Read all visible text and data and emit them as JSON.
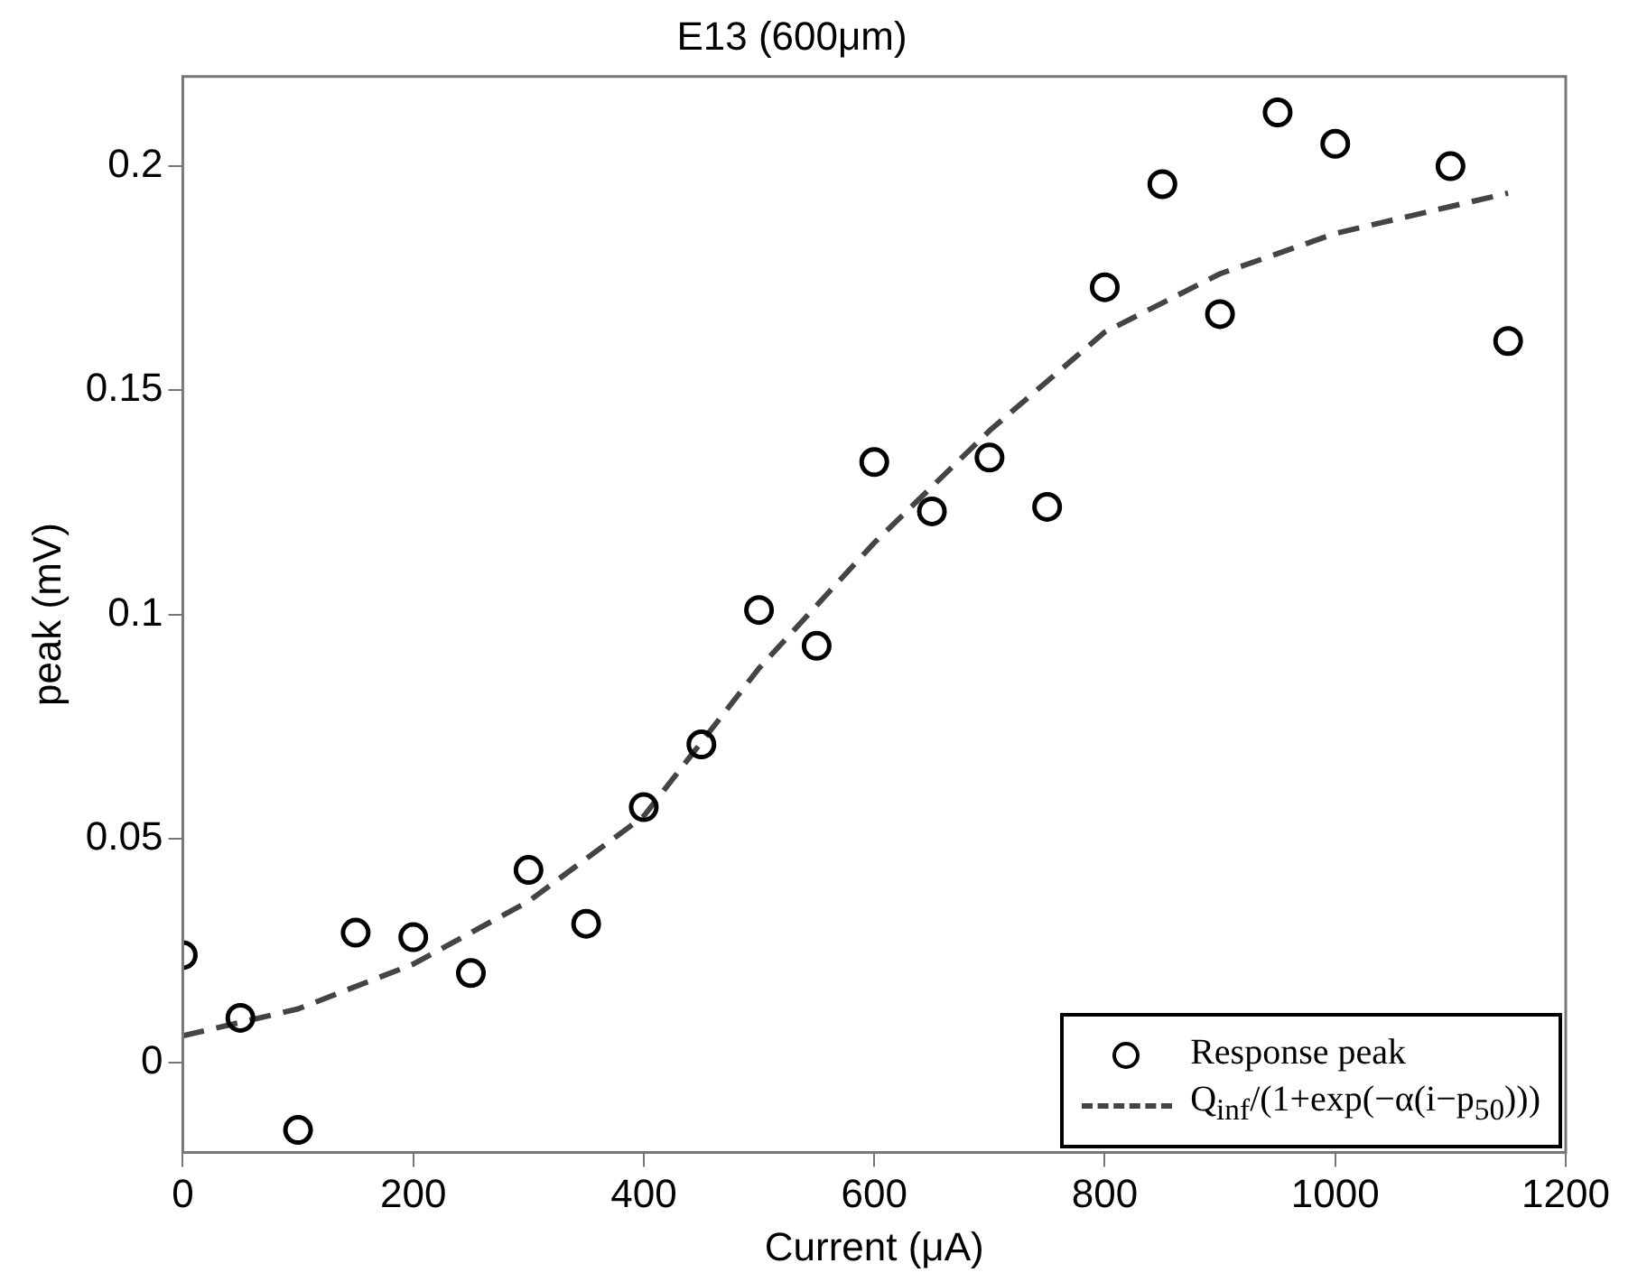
{
  "chart_data": {
    "type": "scatter",
    "title": "E13 (600μm)",
    "xlabel": "Current (μA)",
    "ylabel": "peak (mV)",
    "xlim": [
      0,
      1200
    ],
    "xticks": [
      0,
      200,
      400,
      600,
      800,
      1000,
      1200
    ],
    "ylim": [
      -0.02,
      0.22
    ],
    "yticks": [
      0,
      0.05,
      0.1,
      0.15,
      0.2
    ],
    "grid": false,
    "legend": "bottom right",
    "series": [
      {
        "name": "Response peak",
        "type": "scatter",
        "marker": "circle",
        "color": "#000000",
        "x": [
          0,
          50,
          100,
          150,
          200,
          250,
          300,
          350,
          400,
          450,
          500,
          550,
          600,
          650,
          700,
          750,
          800,
          850,
          900,
          950,
          1000,
          1100,
          1150
        ],
        "values": [
          0.024,
          0.01,
          -0.015,
          0.029,
          0.028,
          0.02,
          0.043,
          0.031,
          0.057,
          0.071,
          0.101,
          0.093,
          0.134,
          0.123,
          0.135,
          0.124,
          0.173,
          0.196,
          0.167,
          0.212,
          0.205,
          0.2,
          0.161
        ]
      },
      {
        "name": "Q$_{inf}$/(1+exp(−α(i−p$_{50}$)))",
        "type": "line",
        "line_style": "dashed",
        "marker": "none",
        "color": "#444444",
        "x": [
          0,
          100,
          200,
          300,
          400,
          500,
          600,
          700,
          800,
          900,
          1000,
          1100,
          1150
        ],
        "values": [
          0.006,
          0.012,
          0.022,
          0.036,
          0.055,
          0.088,
          0.116,
          0.141,
          0.163,
          0.176,
          0.185,
          0.191,
          0.194
        ]
      }
    ]
  }
}
